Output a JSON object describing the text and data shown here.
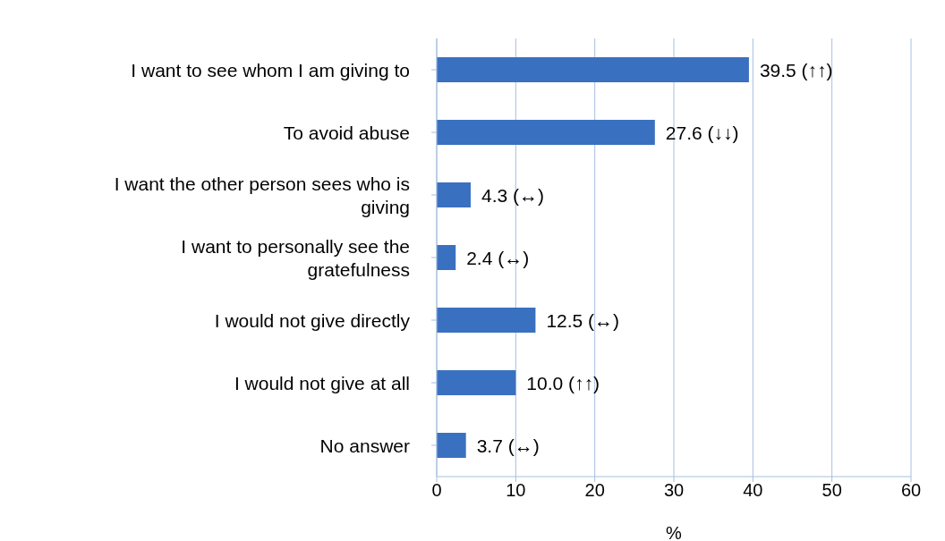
{
  "chart_data": {
    "type": "bar",
    "orientation": "horizontal",
    "xlabel": "%",
    "categories": [
      "I want to see whom I am giving to",
      "To avoid abuse",
      "I want the other person sees who is giving",
      "I want to personally see the gratefulness",
      "I would not give directly",
      "I would not give at all",
      "No answer"
    ],
    "values": [
      39.5,
      27.6,
      4.3,
      2.4,
      12.5,
      10.0,
      3.7
    ],
    "value_labels": [
      "39.5 (↑↑)",
      "27.6 (↓↓)",
      "4.3 (↔)",
      "2.4 (↔)",
      "12.5 (↔)",
      "10.0 (↑↑)",
      "3.7 (↔)"
    ],
    "color": "#3a70c0",
    "xlim": [
      0,
      60
    ],
    "xticks": [
      0,
      10,
      20,
      30,
      40,
      50,
      60
    ],
    "grid": "x"
  }
}
